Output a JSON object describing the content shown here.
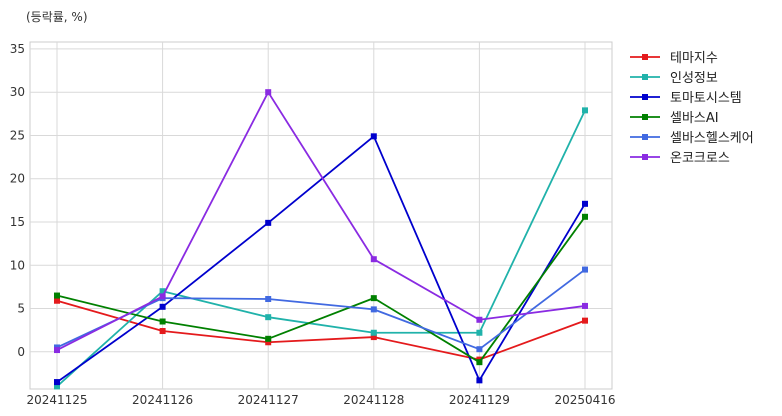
{
  "chart_data": {
    "type": "line",
    "unit_label": "(등락률, %)",
    "categories": [
      "20241125",
      "20241126",
      "20241127",
      "20241128",
      "20241129",
      "20250416"
    ],
    "y_ticks": [
      0,
      5,
      10,
      15,
      20,
      25,
      30,
      35
    ],
    "ylim": [
      -4.3,
      35.8
    ],
    "grid": true,
    "legend_position": "right",
    "series": [
      {
        "name": "테마지수",
        "color": "#e41a1c",
        "values": [
          5.9,
          2.4,
          1.1,
          1.7,
          -0.9,
          3.6
        ]
      },
      {
        "name": "인성정보",
        "color": "#20b2aa",
        "values": [
          -4.0,
          7.0,
          4.0,
          2.2,
          2.2,
          27.9
        ]
      },
      {
        "name": "토마토시스템",
        "color": "#0000cd",
        "values": [
          -3.5,
          5.2,
          14.9,
          24.9,
          -3.3,
          17.1
        ]
      },
      {
        "name": "셀바스AI",
        "color": "#008000",
        "values": [
          6.5,
          3.5,
          1.5,
          6.2,
          -1.2,
          15.6
        ]
      },
      {
        "name": "셀바스헬스케어",
        "color": "#4169e1",
        "values": [
          0.5,
          6.2,
          6.1,
          4.9,
          0.3,
          9.5
        ]
      },
      {
        "name": "온코크로스",
        "color": "#8a2be2",
        "values": [
          0.2,
          6.4,
          30.0,
          10.7,
          3.7,
          5.3
        ]
      }
    ]
  }
}
